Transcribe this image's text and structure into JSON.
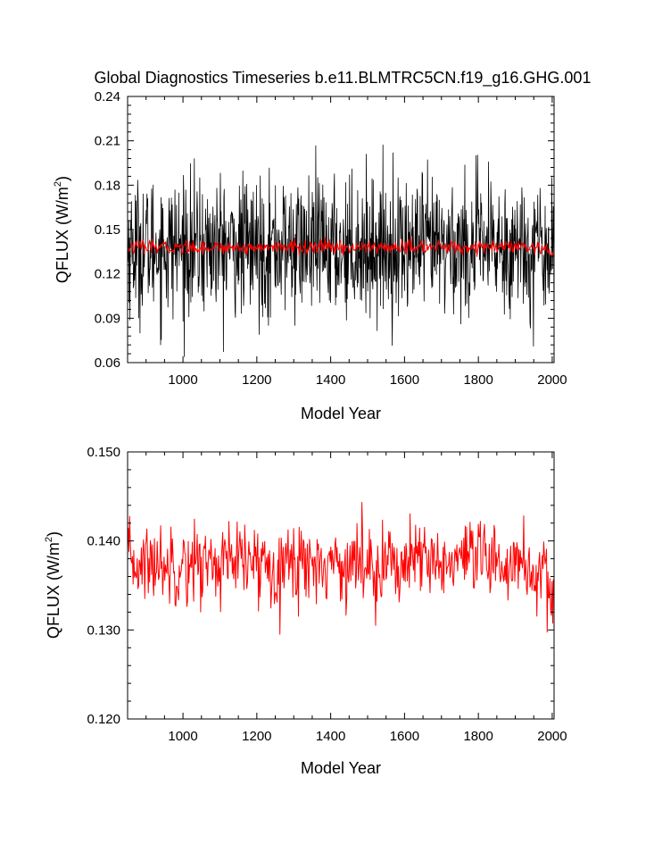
{
  "title": "Global Diagnostics Timeseries b.e11.BLMTRC5CN.f19_g16.GHG.001",
  "colors": {
    "monthly": "#000000",
    "annual": "#ff0000",
    "axis": "#000000",
    "background": "#ffffff"
  },
  "chart_data": [
    {
      "type": "line",
      "name": "top-panel",
      "xlabel": "Model Year",
      "ylabel": "QFLUX (W/m",
      "ylabel_sup": "2",
      "ylabel_end": ")",
      "xlim": [
        850,
        2005
      ],
      "ylim": [
        0.06,
        0.24
      ],
      "xticks": [
        1000,
        1200,
        1400,
        1600,
        1800,
        2000
      ],
      "xtick_labels": [
        "1000",
        "1200",
        "1400",
        "1600",
        "1800",
        "2000"
      ],
      "yticks": [
        0.06,
        0.09,
        0.12,
        0.15,
        0.18,
        0.21,
        0.24
      ],
      "ytick_labels": [
        "0.06",
        "0.09",
        "0.12",
        "0.15",
        "0.18",
        "0.21",
        "0.24"
      ],
      "series": [
        {
          "name": "monthly",
          "color": "#000000",
          "mean": 0.138,
          "spread": 0.06,
          "min": 0.064,
          "max": 0.227,
          "x_start": 850,
          "x_end": 2005
        },
        {
          "name": "annual",
          "color": "#ff0000",
          "mean": 0.138,
          "spread": 0.0045,
          "min": 0.122,
          "max": 0.15,
          "x_start": 850,
          "x_end": 2005
        }
      ]
    },
    {
      "type": "line",
      "name": "bottom-panel",
      "xlabel": "Model Year",
      "ylabel": "QFLUX (W/m",
      "ylabel_sup": "2",
      "ylabel_end": ")",
      "xlim": [
        850,
        2005
      ],
      "ylim": [
        0.12,
        0.15
      ],
      "xticks": [
        1000,
        1200,
        1400,
        1600,
        1800,
        2000
      ],
      "xtick_labels": [
        "1000",
        "1200",
        "1400",
        "1600",
        "1800",
        "2000"
      ],
      "yticks": [
        0.12,
        0.13,
        0.14,
        0.15
      ],
      "ytick_labels": [
        "0.120",
        "0.130",
        "0.140",
        "0.150"
      ],
      "series": [
        {
          "name": "annual",
          "color": "#ff0000",
          "mean": 0.1375,
          "spread": 0.0045,
          "min": 0.1222,
          "max": 0.1496,
          "x_start": 850,
          "x_end": 2005
        }
      ]
    }
  ]
}
